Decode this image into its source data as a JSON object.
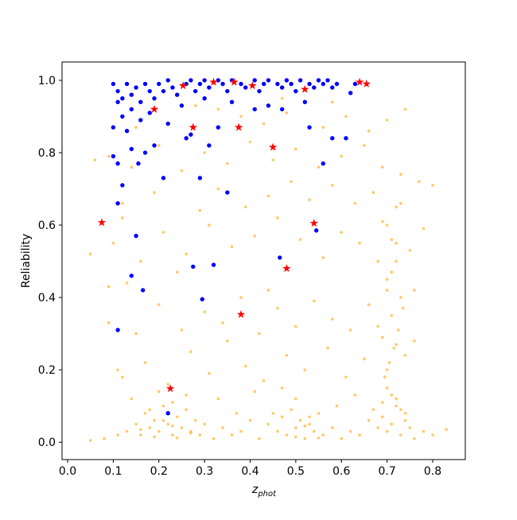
{
  "chart_data": {
    "type": "scatter",
    "xlabel": {
      "main": "z",
      "sub": "phot"
    },
    "ylabel": "Reliability",
    "xlim": [
      -0.0122,
      0.8715
    ],
    "ylim": [
      -0.048,
      1.0505
    ],
    "xticks": [
      {
        "value": 0,
        "label": "0.0"
      },
      0.1,
      0.2,
      0.3,
      0.4,
      0.5,
      0.6,
      0.7,
      0.8
    ],
    "yticks": [
      {
        "value": 0,
        "label": "0.0"
      },
      0.2,
      0.4,
      0.6,
      0.8,
      {
        "value": 1,
        "label": "1.0"
      }
    ],
    "grid": false,
    "series": [
      {
        "color": "#ffa500",
        "marker": "circle",
        "x": [
          0.05,
          0.08,
          0.11,
          0.13,
          0.15,
          0.16,
          0.17,
          0.18,
          0.19,
          0.2,
          0.21,
          0.22,
          0.23,
          0.24,
          0.25,
          0.26,
          0.27,
          0.28,
          0.29,
          0.3,
          0.32,
          0.34,
          0.36,
          0.38,
          0.4,
          0.42,
          0.44,
          0.45,
          0.46,
          0.47,
          0.48,
          0.49,
          0.5,
          0.51,
          0.52,
          0.53,
          0.54,
          0.55,
          0.56,
          0.58,
          0.6,
          0.62,
          0.64,
          0.66,
          0.67,
          0.68,
          0.69,
          0.7,
          0.71,
          0.72,
          0.73,
          0.74,
          0.75,
          0.76,
          0.78,
          0.8,
          0.83,
          0.14,
          0.2,
          0.23,
          0.26,
          0.18,
          0.5,
          0.47,
          0.72,
          0.7,
          0.74,
          0.69,
          0.71,
          0.73,
          0.12,
          0.17,
          0.22,
          0.27,
          0.31,
          0.35,
          0.39,
          0.43,
          0.48,
          0.52,
          0.57,
          0.61,
          0.65,
          0.7,
          0.72,
          0.68,
          0.74,
          0.71,
          0.69,
          0.73,
          0.09,
          0.15,
          0.2,
          0.25,
          0.3,
          0.34,
          0.38,
          0.42,
          0.46,
          0.5,
          0.54,
          0.58,
          0.62,
          0.66,
          0.7,
          0.72,
          0.76,
          0.13,
          0.24,
          0.44,
          0.1,
          0.16,
          0.21,
          0.26,
          0.31,
          0.36,
          0.41,
          0.46,
          0.51,
          0.56,
          0.6,
          0.64,
          0.68,
          0.7,
          0.71,
          0.75,
          0.78,
          0.12,
          0.19,
          0.29,
          0.33,
          0.39,
          0.44,
          0.49,
          0.53,
          0.58,
          0.63,
          0.67,
          0.72,
          0.05,
          0.09,
          0.14,
          0.2,
          0.25,
          0.3,
          0.35,
          0.4,
          0.45,
          0.5,
          0.55,
          0.6,
          0.65,
          0.69,
          0.73,
          0.77,
          0.8,
          0.43,
          0.48,
          0.56,
          0.61,
          0.66,
          0.7,
          0.74,
          0.33,
          0.28,
          0.15,
          0.12,
          0.58,
          0.47,
          0.38,
          0.16,
          0.19,
          0.21,
          0.23,
          0.24,
          0.27,
          0.5,
          0.52,
          0.53,
          0.55,
          0.695,
          0.705,
          0.715,
          0.725,
          0.735,
          0.7,
          0.71,
          0.72,
          0.69,
          0.73,
          0.09,
          0.11,
          0.12,
          0.06,
          0.33,
          0.37,
          0.41,
          0.63,
          0.59,
          0.76
        ],
        "values": [
          0.005,
          0.01,
          0.02,
          0.03,
          0.05,
          0.02,
          0.08,
          0.04,
          0.06,
          0.03,
          0.1,
          0.05,
          0.02,
          0.07,
          0.04,
          0.09,
          0.03,
          0.06,
          0.02,
          0.05,
          0.01,
          0.04,
          0.02,
          0.03,
          0.06,
          0.01,
          0.05,
          0.08,
          0.03,
          0.07,
          0.02,
          0.09,
          0.04,
          0.06,
          0.01,
          0.05,
          0.03,
          0.08,
          0.02,
          0.04,
          0.01,
          0.03,
          0.02,
          0.06,
          0.09,
          0.04,
          0.07,
          0.03,
          0.05,
          0.1,
          0.02,
          0.06,
          0.04,
          0.01,
          0.03,
          0.02,
          0.035,
          0.12,
          0.14,
          0.11,
          0.13,
          0.09,
          0.12,
          0.15,
          0.12,
          0.15,
          0.08,
          0.11,
          0.13,
          0.09,
          0.18,
          0.22,
          0.16,
          0.25,
          0.19,
          0.28,
          0.21,
          0.17,
          0.24,
          0.2,
          0.26,
          0.18,
          0.23,
          0.2,
          0.27,
          0.32,
          0.24,
          0.35,
          0.29,
          0.4,
          0.33,
          0.3,
          0.38,
          0.31,
          0.36,
          0.33,
          0.4,
          0.3,
          0.37,
          0.32,
          0.39,
          0.34,
          0.31,
          0.38,
          0.45,
          0.5,
          0.42,
          0.44,
          0.47,
          0.42,
          0.55,
          0.5,
          0.58,
          0.52,
          0.6,
          0.54,
          0.57,
          0.62,
          0.56,
          0.51,
          0.58,
          0.55,
          0.5,
          0.6,
          0.56,
          0.53,
          0.59,
          0.66,
          0.69,
          0.64,
          0.7,
          0.65,
          0.68,
          0.72,
          0.67,
          0.71,
          0.66,
          0.69,
          0.65,
          0.52,
          0.79,
          0.76,
          0.82,
          0.75,
          0.8,
          0.77,
          0.83,
          0.78,
          0.81,
          0.76,
          0.79,
          0.82,
          0.76,
          0.74,
          0.72,
          0.71,
          0.88,
          0.91,
          0.87,
          0.9,
          0.86,
          0.89,
          0.92,
          0.92,
          0.93,
          0.87,
          0.9,
          0.94,
          0.95,
          0.9,
          0.035,
          0.015,
          0.06,
          0.045,
          0.012,
          0.025,
          0.015,
          0.045,
          0.07,
          0.012,
          0.18,
          0.22,
          0.26,
          0.31,
          0.37,
          0.42,
          0.47,
          0.55,
          0.61,
          0.66,
          0.43,
          0.2,
          0.62,
          0.78,
          0.12,
          0.08,
          0.14,
          0.13,
          0.1,
          0.28
        ]
      },
      {
        "color": "#0000ff",
        "marker": "circle",
        "x": [
          0.1,
          0.11,
          0.12,
          0.13,
          0.14,
          0.15,
          0.16,
          0.17,
          0.18,
          0.19,
          0.2,
          0.21,
          0.22,
          0.23,
          0.24,
          0.26,
          0.27,
          0.28,
          0.29,
          0.3,
          0.31,
          0.33,
          0.34,
          0.35,
          0.36,
          0.38,
          0.39,
          0.41,
          0.42,
          0.43,
          0.44,
          0.46,
          0.47,
          0.48,
          0.49,
          0.5,
          0.51,
          0.53,
          0.54,
          0.55,
          0.56,
          0.57,
          0.58,
          0.59,
          0.62,
          0.63,
          0.11,
          0.12,
          0.1,
          0.13,
          0.14,
          0.16,
          0.18,
          0.22,
          0.25,
          0.27,
          0.3,
          0.33,
          0.36,
          0.41,
          0.44,
          0.47,
          0.52,
          0.53,
          0.58,
          0.61,
          0.1,
          0.11,
          0.12,
          0.14,
          0.155,
          0.17,
          0.19,
          0.21,
          0.26,
          0.31,
          0.35,
          0.11,
          0.15,
          0.14,
          0.165,
          0.275,
          0.32,
          0.295,
          0.465,
          0.545,
          0.11,
          0.22,
          0.56,
          0.29
        ],
        "values": [
          0.99,
          0.97,
          0.95,
          0.99,
          0.96,
          0.98,
          0.94,
          0.99,
          0.97,
          0.95,
          0.99,
          0.97,
          1.0,
          0.98,
          0.96,
          0.99,
          1.0,
          0.97,
          0.99,
          1.0,
          0.98,
          1.0,
          0.99,
          0.97,
          1.0,
          0.99,
          0.98,
          1.0,
          0.97,
          0.99,
          1.0,
          0.99,
          0.98,
          1.0,
          0.99,
          0.97,
          1.0,
          0.99,
          0.98,
          1.0,
          0.99,
          1.0,
          0.98,
          0.99,
          0.965,
          0.99,
          0.94,
          0.9,
          0.87,
          0.86,
          0.92,
          0.89,
          0.91,
          0.88,
          0.93,
          0.85,
          0.95,
          0.87,
          0.94,
          0.92,
          0.93,
          0.92,
          0.94,
          0.87,
          0.84,
          0.84,
          0.79,
          0.77,
          0.71,
          0.81,
          0.77,
          0.8,
          0.82,
          0.73,
          0.84,
          0.82,
          0.69,
          0.66,
          0.57,
          0.46,
          0.42,
          0.485,
          0.49,
          0.395,
          0.51,
          0.585,
          0.31,
          0.08,
          0.77,
          0.73
        ]
      },
      {
        "color": "#ff0000",
        "marker": "star",
        "x": [
          0.253,
          0.32,
          0.365,
          0.405,
          0.52,
          0.64,
          0.655,
          0.19,
          0.275,
          0.375,
          0.45,
          0.075,
          0.54,
          0.48,
          0.38,
          0.225
        ],
        "values": [
          0.985,
          0.995,
          0.995,
          0.985,
          0.975,
          0.995,
          0.99,
          0.92,
          0.87,
          0.87,
          0.815,
          0.607,
          0.605,
          0.48,
          0.353,
          0.148
        ]
      }
    ]
  }
}
